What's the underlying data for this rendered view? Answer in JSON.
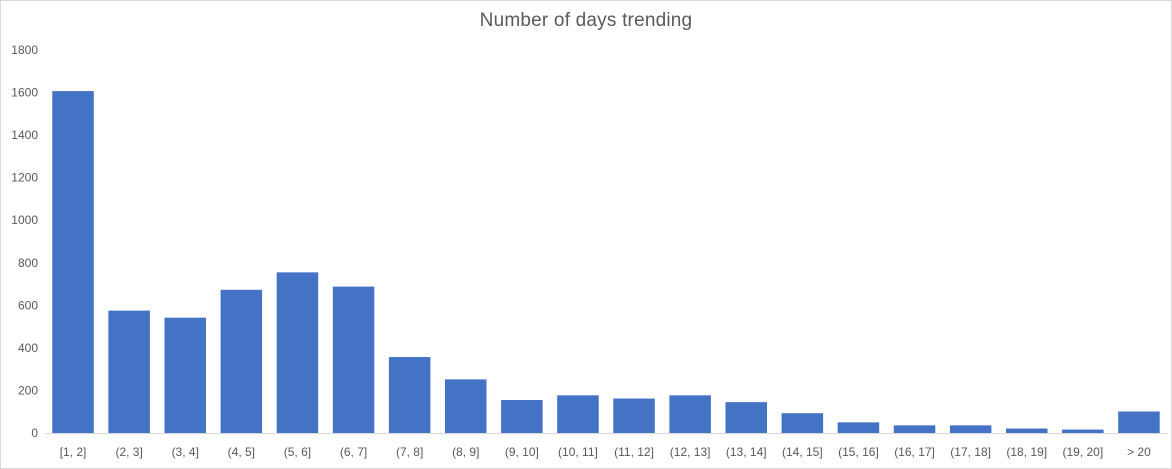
{
  "chart_data": {
    "type": "bar",
    "title": "Number of days trending",
    "xlabel": "",
    "ylabel": "",
    "ylim": [
      0,
      1800
    ],
    "yticks": [
      0,
      200,
      400,
      600,
      800,
      1000,
      1200,
      1400,
      1600,
      1800
    ],
    "grid": false,
    "legend": "none",
    "bar_color": "#4472C4",
    "categories": [
      "[1, 2]",
      "(2, 3]",
      "(3, 4]",
      "(4, 5]",
      "(5, 6]",
      "(6, 7]",
      "(7, 8]",
      "(8, 9]",
      "(9, 10]",
      "(10, 11]",
      "(11, 12]",
      "(12, 13]",
      "(13, 14]",
      "(14, 15]",
      "(15, 16]",
      "(16, 17]",
      "(17, 18]",
      "(18, 19]",
      "(19, 20]",
      "> 20"
    ],
    "values": [
      1607,
      575,
      542,
      673,
      755,
      688,
      357,
      252,
      155,
      177,
      162,
      177,
      145,
      93,
      50,
      36,
      36,
      21,
      16,
      101
    ]
  }
}
